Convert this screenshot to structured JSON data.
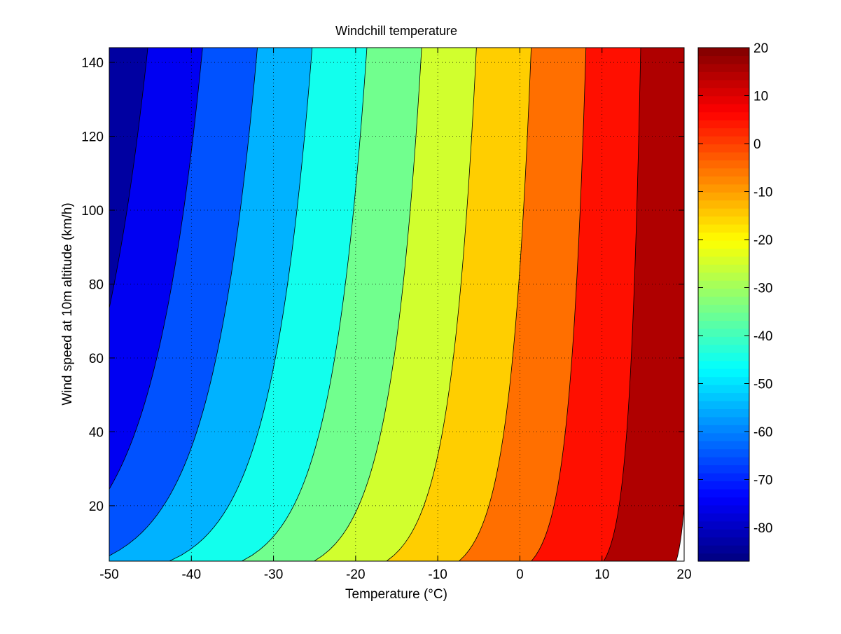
{
  "chart_data": {
    "type": "filled-contour",
    "title": "Windchill temperature",
    "xlabel": "Temperature (°C)",
    "ylabel": "Wind speed at 10m altitude (km/h)",
    "xlim": [
      -50,
      20
    ],
    "ylim": [
      5,
      144
    ],
    "xticks": [
      -50,
      -40,
      -30,
      -20,
      -10,
      0,
      10,
      20
    ],
    "yticks": [
      20,
      40,
      60,
      80,
      100,
      120,
      140
    ],
    "grid": true,
    "colormap": "jet",
    "formula": "13.12 + 0.6215*T - 11.37*V^0.16 + 0.3965*T*V^0.16",
    "contour_levels": [
      -87,
      -80,
      -70,
      -60,
      -50,
      -40,
      -30,
      -20,
      -10,
      0,
      10,
      20
    ],
    "colorbar": {
      "position": "right",
      "range": [
        -87,
        20
      ],
      "ticks": [
        -80,
        -70,
        -60,
        -50,
        -40,
        -30,
        -20,
        -10,
        0,
        10,
        20
      ]
    }
  }
}
